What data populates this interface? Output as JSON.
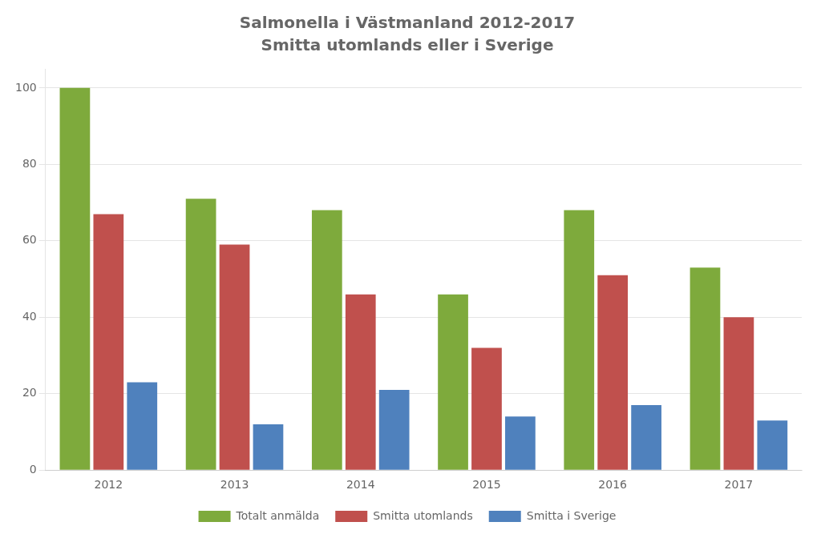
{
  "chart_data": {
    "type": "bar",
    "title": "Salmonella i Västmanland 2012-2017",
    "subtitle": "Smitta utomlands eller i Sverige",
    "categories": [
      "2012",
      "2013",
      "2014",
      "2015",
      "2016",
      "2017"
    ],
    "series": [
      {
        "name": "Totalt anmälda",
        "color": "#7EAA3C",
        "values": [
          100,
          71,
          68,
          46,
          68,
          53
        ]
      },
      {
        "name": "Smitta utomlands",
        "color": "#C0504D",
        "values": [
          67,
          59,
          46,
          32,
          51,
          40
        ]
      },
      {
        "name": "Smitta i Sverige",
        "color": "#4F81BD",
        "values": [
          23,
          12,
          21,
          14,
          17,
          13
        ]
      }
    ],
    "ylim": [
      0,
      105
    ],
    "yticks": [
      0,
      20,
      40,
      60,
      80,
      100
    ],
    "grid": true,
    "legend": "bottom"
  }
}
